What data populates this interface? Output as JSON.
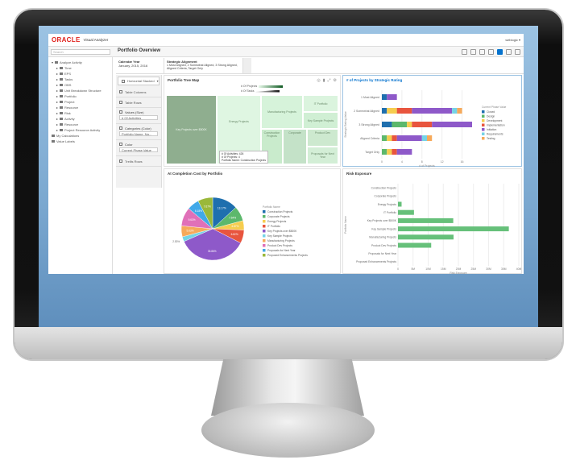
{
  "app": {
    "brand": "ORACLE",
    "product": "Visual Analyzer",
    "user": "weblogic ▾",
    "page_title": "Portfolio Overview",
    "search_placeholder": "Search"
  },
  "toolbar_icons": [
    "undo-icon",
    "redo-icon",
    "add-chart-icon",
    "layout-icon",
    "link-icon",
    "document-icon",
    "settings-icon"
  ],
  "colors": {
    "oracle_red": "#e0201b",
    "accent": "#0572ce",
    "treemap_dark": "#8fae8f",
    "treemap_light": "#d9f5dc"
  },
  "tree": {
    "root": "Analyze Activity",
    "items": [
      "Time",
      "EPS",
      "Tasks",
      "OBS",
      "Unit Breakdown Structure",
      "Portfolio",
      "Project",
      "Resource",
      "Risk",
      "Activity",
      "Resource",
      "Project Resource Activity"
    ],
    "footer": [
      "My Calculations",
      "Value Labels"
    ]
  },
  "filters": [
    {
      "title": "Calendar Year",
      "value": "January, 2015, 2016"
    },
    {
      "title": "Strategic Alignment",
      "value": "1 Most Aligned, 2 Somewhat Aligned, 3 Strong Aligned, Aligned Criteria, Target Only"
    }
  ],
  "grammar": {
    "viz_type": "Horizontal Stacked",
    "items": [
      "Table Columns",
      "Table Rows",
      "Values (Size)",
      "Categories (Color)",
      "Color",
      "Trellis Rows"
    ],
    "values_box": "# Of Activities",
    "categories_box": "Portfolio Name, Na...",
    "color_box": "Current Phase Value"
  },
  "treemap": {
    "title": "Portfolio Tree Map",
    "legend": [
      "# Of Projects",
      "# Of Tasks"
    ],
    "tiles": [
      "Key Projects over $500K",
      "Energy Projects",
      "Manufacturing Projects",
      "IT Portfolio",
      "Key Sample Projects",
      "Construction Projects",
      "Corporate",
      "Product Dev",
      "Proposals for Next Year"
    ],
    "tooltip": [
      "# Of Activities: 426",
      "# Of Projects: 4",
      "Portfolio Name: Construction Projects"
    ]
  },
  "chart_data": [
    {
      "type": "bar",
      "orientation": "horizontal",
      "stacked": true,
      "title": "# of Projects by Strategic Rating",
      "xlabel": "# of Projects",
      "ylabel": "Strategic Rating Value",
      "legend_title": "Current Phase Value",
      "legend_position": "right",
      "xlim": [
        0,
        18
      ],
      "ticks": [
        0,
        4,
        8,
        12,
        16
      ],
      "categories": [
        "1 Most Aligned",
        "2 Somewhat Aligned",
        "3 Strong Aligned",
        "Aligned Criteria",
        "Target Only"
      ],
      "series": [
        {
          "name": "Closed",
          "color": "#1f6fae",
          "values": [
            1,
            1,
            2,
            0,
            0
          ]
        },
        {
          "name": "Design",
          "color": "#5cb86c",
          "values": [
            0,
            0,
            3,
            1,
            1
          ]
        },
        {
          "name": "Development",
          "color": "#f6cd4f",
          "values": [
            0,
            2,
            1,
            1,
            1
          ]
        },
        {
          "name": "Implementation",
          "color": "#e8553e",
          "values": [
            0,
            3,
            4,
            1,
            1
          ]
        },
        {
          "name": "Initiation",
          "color": "#8e59c9",
          "values": [
            2,
            8,
            8,
            5,
            3
          ]
        },
        {
          "name": "Requirements",
          "color": "#74d3e6",
          "values": [
            0,
            1,
            0,
            1,
            0
          ]
        },
        {
          "name": "Testing",
          "color": "#f6a95a",
          "values": [
            0,
            1,
            0,
            1,
            0
          ]
        }
      ]
    },
    {
      "type": "pie",
      "title": "At Completion Cost by Portfolio",
      "legend_title": "Portfolio Name",
      "legend_position": "right",
      "slices": [
        {
          "name": "Construction Projects",
          "value": 13.17,
          "color": "#1f6fae"
        },
        {
          "name": "Corporate Projects",
          "value": 7.64,
          "color": "#5cb86c"
        },
        {
          "name": "Energy Projects",
          "value": 4.87,
          "color": "#f6cd4f"
        },
        {
          "name": "IT Portfolio",
          "value": 6.82,
          "color": "#e8553e"
        },
        {
          "name": "Key Projects over $500K",
          "value": 35.86,
          "color": "#8e59c9"
        },
        {
          "name": "Key Sample Projects",
          "value": 2.53,
          "color": "#74d3e6"
        },
        {
          "name": "Manufacturing Projects",
          "value": 5.63,
          "color": "#f6a95a"
        },
        {
          "name": "Product Dev Projects",
          "value": 9.63,
          "color": "#e070b8"
        },
        {
          "name": "Proposals for Next Year",
          "value": 6.18,
          "color": "#41a9e8"
        },
        {
          "name": "Proposed Enhancements Projects",
          "value": 7.67,
          "color": "#9ab83a"
        }
      ]
    },
    {
      "type": "bar",
      "orientation": "horizontal",
      "title": "Risk Exposure",
      "xlabel": "Risk Exposure",
      "ylabel": "Portfolio Name",
      "xlim": [
        0,
        40000000
      ],
      "ticks": [
        "0",
        "5M",
        "10M",
        "15M",
        "20M",
        "25M",
        "30M",
        "35M",
        "40M"
      ],
      "color": "#66c07a",
      "categories": [
        "Construction Projects",
        "Corporate Projects",
        "Energy Projects",
        "IT Portfolio",
        "Key Projects over $500K",
        "Key Sample Projects",
        "Manufacturing Projects",
        "Product Dev Projects",
        "Proposals for Next Year",
        "Proposed Enhancements Projects"
      ],
      "values": [
        0,
        0,
        1200000,
        5300000,
        18300000,
        36700000,
        18400000,
        11000000,
        0,
        0
      ]
    }
  ]
}
